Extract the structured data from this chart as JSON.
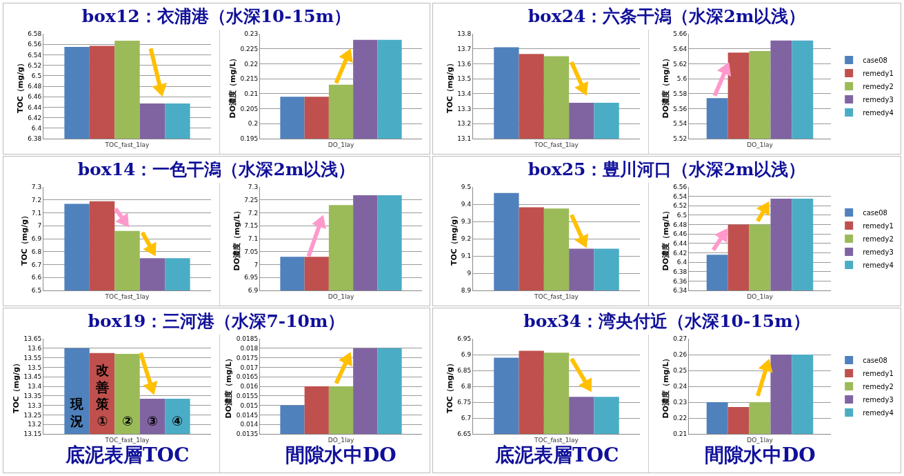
{
  "chart_data": [
    {
      "type": "bar",
      "title": "box12：衣浦港（水深10-15m）",
      "categories": [
        "TOC_fast_1lay"
      ],
      "ylabel": "TOC（mg/g）",
      "ylim": [
        6.38,
        6.58
      ],
      "yticks": [
        6.38,
        6.4,
        6.42,
        6.44,
        6.46,
        6.48,
        6.5,
        6.52,
        6.54,
        6.56,
        6.58
      ],
      "grid": "y",
      "series": [
        {
          "color": "#4f81bd",
          "values": [
            6.555
          ]
        },
        {
          "color": "#c0504d",
          "values": [
            6.557
          ]
        },
        {
          "color": "#9bbb59",
          "values": [
            6.567
          ]
        },
        {
          "color": "#8064a2",
          "values": [
            6.447
          ]
        },
        {
          "color": "#4bacc6",
          "values": [
            6.447
          ]
        }
      ]
    },
    {
      "type": "bar",
      "categories": [
        "DO_1lay"
      ],
      "ylabel": "DO濃度（mg/L）",
      "ylim": [
        0.195,
        0.23
      ],
      "yticks": [
        0.195,
        0.2,
        0.205,
        0.21,
        0.215,
        0.22,
        0.225,
        0.23
      ],
      "grid": "y",
      "series": [
        {
          "color": "#4f81bd",
          "values": [
            0.209
          ]
        },
        {
          "color": "#c0504d",
          "values": [
            0.209
          ]
        },
        {
          "color": "#9bbb59",
          "values": [
            0.213
          ]
        },
        {
          "color": "#8064a2",
          "values": [
            0.228
          ]
        },
        {
          "color": "#4bacc6",
          "values": [
            0.228
          ]
        }
      ]
    },
    {
      "type": "bar",
      "title": "box24：六条干潟（水深2m以浅）",
      "categories": [
        "TOC_fast_1lay"
      ],
      "ylabel": "TOC（mg/g）",
      "ylim": [
        13.1,
        13.8
      ],
      "yticks": [
        13.1,
        13.2,
        13.3,
        13.4,
        13.5,
        13.6,
        13.7,
        13.8
      ],
      "grid": "y",
      "series": [
        {
          "color": "#4f81bd",
          "values": [
            13.71
          ]
        },
        {
          "color": "#c0504d",
          "values": [
            13.665
          ]
        },
        {
          "color": "#9bbb59",
          "values": [
            13.65
          ]
        },
        {
          "color": "#8064a2",
          "values": [
            13.34
          ]
        },
        {
          "color": "#4bacc6",
          "values": [
            13.34
          ]
        }
      ]
    },
    {
      "type": "bar",
      "categories": [
        "DO_1lay"
      ],
      "ylabel": "DO濃度（mg/L）",
      "ylim": [
        5.52,
        5.66
      ],
      "yticks": [
        5.52,
        5.54,
        5.56,
        5.58,
        5.6,
        5.62,
        5.64,
        5.66
      ],
      "grid": "y",
      "legend": "right",
      "series": [
        {
          "name": "case08",
          "color": "#4f81bd",
          "values": [
            5.574
          ]
        },
        {
          "name": "remedy1",
          "color": "#c0504d",
          "values": [
            5.635
          ]
        },
        {
          "name": "remedy2",
          "color": "#9bbb59",
          "values": [
            5.637
          ]
        },
        {
          "name": "remedy3",
          "color": "#8064a2",
          "values": [
            5.651
          ]
        },
        {
          "name": "remedy4",
          "color": "#4bacc6",
          "values": [
            5.651
          ]
        }
      ]
    },
    {
      "type": "bar",
      "title": "box14：一色干潟（水深2m以浅）",
      "categories": [
        "TOC_fast_1lay"
      ],
      "ylabel": "TOC（mg/g）",
      "ylim": [
        6.5,
        7.3
      ],
      "yticks": [
        6.5,
        6.6,
        6.7,
        6.8,
        6.9,
        7,
        7.1,
        7.2,
        7.3
      ],
      "grid": "y",
      "series": [
        {
          "color": "#4f81bd",
          "values": [
            7.17
          ]
        },
        {
          "color": "#c0504d",
          "values": [
            7.19
          ]
        },
        {
          "color": "#9bbb59",
          "values": [
            6.96
          ]
        },
        {
          "color": "#8064a2",
          "values": [
            6.75
          ]
        },
        {
          "color": "#4bacc6",
          "values": [
            6.75
          ]
        }
      ]
    },
    {
      "type": "bar",
      "categories": [
        "DO_1lay"
      ],
      "ylabel": "DO濃度（mg/L）",
      "ylim": [
        6.9,
        7.3
      ],
      "yticks": [
        6.9,
        6.95,
        7,
        7.05,
        7.1,
        7.15,
        7.2,
        7.25,
        7.3
      ],
      "grid": "y",
      "series": [
        {
          "color": "#4f81bd",
          "values": [
            7.03
          ]
        },
        {
          "color": "#c0504d",
          "values": [
            7.03
          ]
        },
        {
          "color": "#9bbb59",
          "values": [
            7.23
          ]
        },
        {
          "color": "#8064a2",
          "values": [
            7.268
          ]
        },
        {
          "color": "#4bacc6",
          "values": [
            7.268
          ]
        }
      ]
    },
    {
      "type": "bar",
      "title": "box25：豊川河口（水深2m以浅）",
      "categories": [
        "TOC_fast_1lay"
      ],
      "ylabel": "TOC（mg/g）",
      "ylim": [
        8.9,
        9.5
      ],
      "yticks": [
        8.9,
        9,
        9.1,
        9.2,
        9.3,
        9.4,
        9.5
      ],
      "grid": "y",
      "series": [
        {
          "color": "#4f81bd",
          "values": [
            9.465
          ]
        },
        {
          "color": "#c0504d",
          "values": [
            9.382
          ]
        },
        {
          "color": "#9bbb59",
          "values": [
            9.375
          ]
        },
        {
          "color": "#8064a2",
          "values": [
            9.142
          ]
        },
        {
          "color": "#4bacc6",
          "values": [
            9.142
          ]
        }
      ]
    },
    {
      "type": "bar",
      "categories": [
        "DO_1lay"
      ],
      "ylabel": "DO濃度（mg/L）",
      "ylim": [
        6.34,
        6.56
      ],
      "yticks": [
        6.34,
        6.36,
        6.38,
        6.4,
        6.42,
        6.44,
        6.46,
        6.48,
        6.5,
        6.52,
        6.54,
        6.56
      ],
      "grid": "y",
      "legend": "right",
      "series": [
        {
          "name": "case08",
          "color": "#4f81bd",
          "values": [
            6.416
          ]
        },
        {
          "name": "remedy1",
          "color": "#c0504d",
          "values": [
            6.48
          ]
        },
        {
          "name": "remedy2",
          "color": "#9bbb59",
          "values": [
            6.48
          ]
        },
        {
          "name": "remedy3",
          "color": "#8064a2",
          "values": [
            6.535
          ]
        },
        {
          "name": "remedy4",
          "color": "#4bacc6",
          "values": [
            6.535
          ]
        }
      ]
    },
    {
      "type": "bar",
      "title": "box19：三河港（水深7-10m）",
      "categories": [
        "TOC_fast_1lay"
      ],
      "ylabel": "TOC（mg/g）",
      "ylim": [
        13.15,
        13.65
      ],
      "yticks": [
        13.15,
        13.2,
        13.25,
        13.3,
        13.35,
        13.4,
        13.45,
        13.5,
        13.55,
        13.6,
        13.65
      ],
      "grid": "y",
      "annotations": [
        "現況",
        "改善策①",
        "②",
        "③",
        "④",
        "底泥表層TOC"
      ],
      "series": [
        {
          "color": "#4f81bd",
          "values": [
            13.6
          ]
        },
        {
          "color": "#c0504d",
          "values": [
            13.575
          ]
        },
        {
          "color": "#9bbb59",
          "values": [
            13.57
          ]
        },
        {
          "color": "#8064a2",
          "values": [
            13.335
          ]
        },
        {
          "color": "#4bacc6",
          "values": [
            13.335
          ]
        }
      ]
    },
    {
      "type": "bar",
      "categories": [
        "DO_1lay"
      ],
      "ylabel": "DO濃度（mg/L）",
      "ylim": [
        0.0135,
        0.0185
      ],
      "yticks": [
        0.0135,
        0.014,
        0.0145,
        0.015,
        0.0155,
        0.016,
        0.0165,
        0.017,
        0.0175,
        0.018,
        0.0185
      ],
      "grid": "y",
      "annotations": [
        "間隙水中DO"
      ],
      "series": [
        {
          "color": "#4f81bd",
          "values": [
            0.015
          ]
        },
        {
          "color": "#c0504d",
          "values": [
            0.016
          ]
        },
        {
          "color": "#9bbb59",
          "values": [
            0.016
          ]
        },
        {
          "color": "#8064a2",
          "values": [
            0.018
          ]
        },
        {
          "color": "#4bacc6",
          "values": [
            0.018
          ]
        }
      ]
    },
    {
      "type": "bar",
      "title": "box34：湾央付近（水深10-15m）",
      "categories": [
        "TOC_fast_1lay"
      ],
      "ylabel": "TOC（mg/g）",
      "ylim": [
        6.65,
        6.95
      ],
      "yticks": [
        6.65,
        6.7,
        6.75,
        6.8,
        6.85,
        6.9,
        6.95
      ],
      "grid": "y",
      "annotations": [
        "底泥表層TOC"
      ],
      "series": [
        {
          "color": "#4f81bd",
          "values": [
            6.89
          ]
        },
        {
          "color": "#c0504d",
          "values": [
            6.912
          ]
        },
        {
          "color": "#9bbb59",
          "values": [
            6.906
          ]
        },
        {
          "color": "#8064a2",
          "values": [
            6.767
          ]
        },
        {
          "color": "#4bacc6",
          "values": [
            6.767
          ]
        }
      ]
    },
    {
      "type": "bar",
      "categories": [
        "DO_1lay"
      ],
      "ylabel": "DO濃度（mg/L）",
      "ylim": [
        0.21,
        0.27
      ],
      "yticks": [
        0.21,
        0.22,
        0.23,
        0.24,
        0.25,
        0.26,
        0.27
      ],
      "grid": "y",
      "legend": "right",
      "annotations": [
        "間隙水中DO"
      ],
      "series": [
        {
          "name": "case08",
          "color": "#4f81bd",
          "values": [
            0.23
          ]
        },
        {
          "name": "remedy1",
          "color": "#c0504d",
          "values": [
            0.227
          ]
        },
        {
          "name": "remedy2",
          "color": "#9bbb59",
          "values": [
            0.23
          ]
        },
        {
          "name": "remedy3",
          "color": "#8064a2",
          "values": [
            0.26
          ]
        },
        {
          "name": "remedy4",
          "color": "#4bacc6",
          "values": [
            0.26
          ]
        }
      ]
    }
  ]
}
